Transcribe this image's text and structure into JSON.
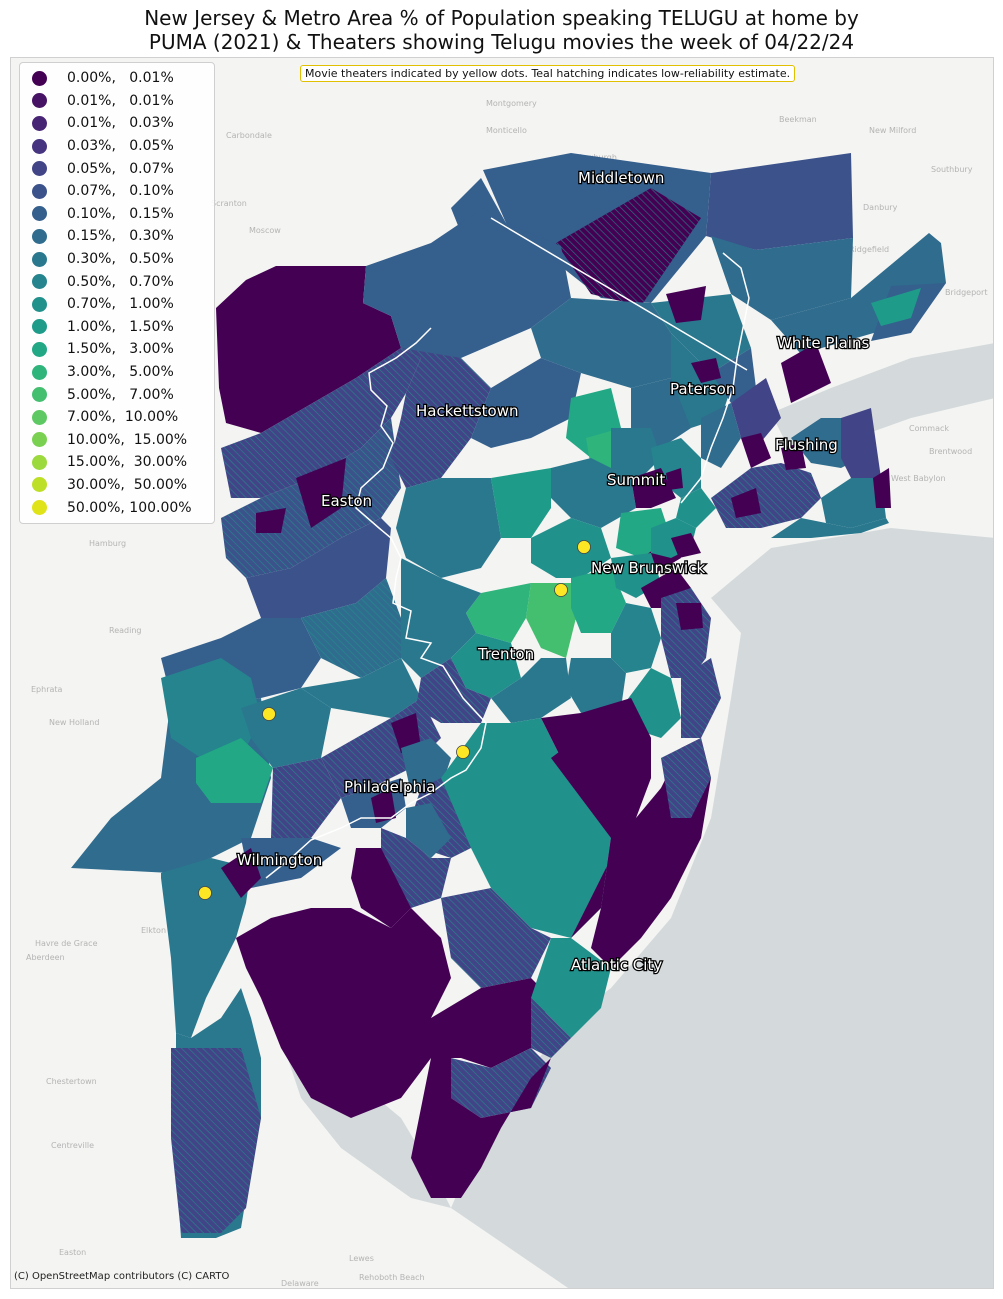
{
  "title": "New Jersey & Metro Area % of Population speaking TELUGU at home by\nPUMA (2021) & Theaters showing Telugu movies the week of 04/22/24",
  "note": "Movie theaters indicated by yellow dots. Teal hatching indicates low-reliability estimate.",
  "attribution": "(C) OpenStreetMap contributors (C) CARTO",
  "colors": {
    "water": "#d4dadc",
    "land": "#f4f4f2",
    "theater": "#fde725",
    "low_reliability_hatch": "#21918c"
  },
  "legend": [
    {
      "label": "0.00%,   0.01%",
      "color": "#440154"
    },
    {
      "label": "0.01%,   0.01%",
      "color": "#471365"
    },
    {
      "label": "0.01%,   0.03%",
      "color": "#482475"
    },
    {
      "label": "0.03%,   0.05%",
      "color": "#463480"
    },
    {
      "label": "0.05%,   0.07%",
      "color": "#414487"
    },
    {
      "label": "0.07%,   0.10%",
      "color": "#3b528b"
    },
    {
      "label": "0.10%,   0.15%",
      "color": "#355f8d"
    },
    {
      "label": "0.15%,   0.30%",
      "color": "#2f6c8e"
    },
    {
      "label": "0.30%,   0.50%",
      "color": "#2a788e"
    },
    {
      "label": "0.50%,   0.70%",
      "color": "#25848e"
    },
    {
      "label": "0.70%,   1.00%",
      "color": "#21918c"
    },
    {
      "label": "1.00%,   1.50%",
      "color": "#1e9c89"
    },
    {
      "label": "1.50%,   3.00%",
      "color": "#22a884"
    },
    {
      "label": "3.00%,   5.00%",
      "color": "#2fb47c"
    },
    {
      "label": "5.00%,   7.00%",
      "color": "#44bf70"
    },
    {
      "label": "7.00%,  10.00%",
      "color": "#5ec962"
    },
    {
      "label": "10.00%,  15.00%",
      "color": "#7ad151"
    },
    {
      "label": "15.00%,  30.00%",
      "color": "#9bd93c"
    },
    {
      "label": "30.00%,  50.00%",
      "color": "#bddf26"
    },
    {
      "label": "50.00%, 100.00%",
      "color": "#dfe318"
    }
  ],
  "cities": [
    "Middletown",
    "White Plains",
    "Paterson",
    "Hackettstown",
    "Flushing",
    "Summit",
    "Easton",
    "New Brunswick",
    "Trenton",
    "Philadelphia",
    "Wilmington",
    "Atlantic City"
  ],
  "theaters": [
    "theater-1",
    "theater-2",
    "theater-3",
    "theater-4",
    "theater-5"
  ],
  "basemap_labels": [
    "Montgomery",
    "Carbondale",
    "Scranton",
    "Moscow",
    "Hamburg",
    "Reading",
    "Ephrata",
    "New Holland",
    "Elkton",
    "Havre de Grace",
    "Aberdeen",
    "Chestertown",
    "Centreville",
    "Easton",
    "Lewes",
    "Rehoboth Beach",
    "Delaware",
    "Beekman",
    "New Milford",
    "Danbury",
    "Ridgefield",
    "Bridgeport",
    "Commack",
    "Brentwood",
    "West Babylon",
    "Southbury",
    "Monticello",
    "Newburgh"
  ]
}
